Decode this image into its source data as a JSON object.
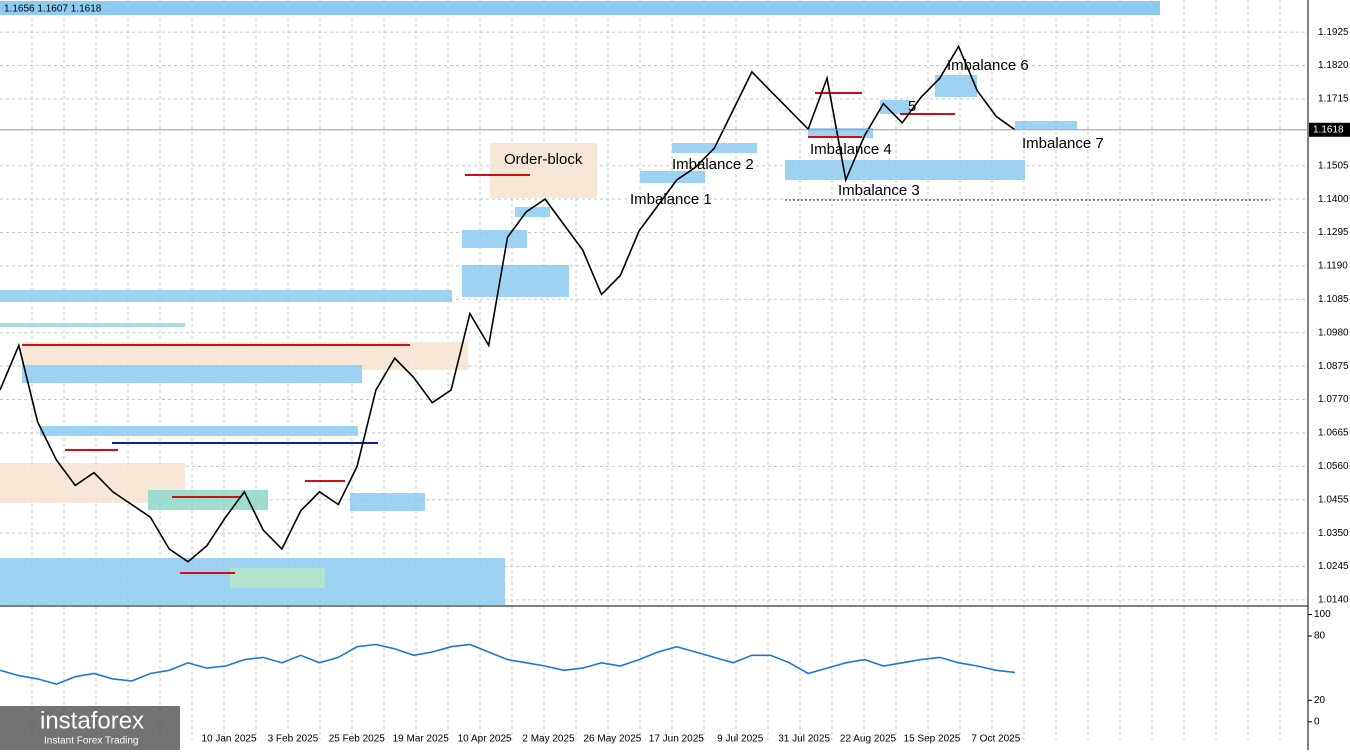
{
  "header": "1.1656 1.1607 1.1618",
  "chart_data": {
    "type": "line",
    "price": {
      "color": "#000000",
      "values": [
        1.08,
        1.094,
        1.07,
        1.058,
        1.05,
        1.054,
        1.048,
        1.044,
        1.04,
        1.03,
        1.026,
        1.031,
        1.04,
        1.048,
        1.036,
        1.03,
        1.042,
        1.048,
        1.044,
        1.056,
        1.08,
        1.09,
        1.084,
        1.076,
        1.08,
        1.104,
        1.094,
        1.128,
        1.136,
        1.14,
        1.132,
        1.124,
        1.11,
        1.116,
        1.13,
        1.138,
        1.146,
        1.15,
        1.156,
        1.168,
        1.18,
        1.174,
        1.168,
        1.162,
        1.178,
        1.146,
        1.16,
        1.17,
        1.164,
        1.172,
        1.178,
        1.188,
        1.174,
        1.166,
        1.1618
      ]
    },
    "current_price": 1.1618,
    "ylim": [
      1.0124,
      1.2026
    ],
    "yticks": [
      1.1925,
      {
        "value": 1.182,
        "label": "1.1820"
      },
      1.1715,
      1.1505,
      {
        "value": 1.14,
        "label": "1.1400"
      },
      1.1295,
      {
        "value": 1.119,
        "label": "1.1190"
      },
      1.1085,
      {
        "value": 1.098,
        "label": "1.0980"
      },
      1.0875,
      {
        "value": 1.077,
        "label": "1.0770"
      },
      1.0665,
      {
        "value": 1.056,
        "label": "1.0560"
      },
      1.0455,
      {
        "value": 1.035,
        "label": "1.0350"
      },
      1.0245,
      {
        "value": 1.014,
        "label": "1.0140"
      }
    ],
    "categories": [
      "10 Jan 2025",
      "3 Feb 2025",
      "25 Feb 2025",
      "19 Mar 2025",
      "10 Apr 2025",
      "2 May 2025",
      "26 May 2025",
      "17 Jun 2025",
      "9 Jul 2025",
      "31 Jul 2025",
      "22 Aug 2025",
      "15 Sep 2025",
      "7 Oct 2025"
    ],
    "indicator": {
      "color": "#1e78d2",
      "values": [
        48,
        43,
        40,
        35,
        42,
        45,
        40,
        38,
        45,
        48,
        55,
        50,
        52,
        58,
        60,
        55,
        62,
        55,
        60,
        70,
        72,
        68,
        62,
        65,
        70,
        72,
        65,
        58,
        55,
        52,
        48,
        50,
        55,
        52,
        58,
        65,
        70,
        65,
        60,
        55,
        62,
        62,
        55,
        45,
        50,
        55,
        58,
        52,
        55,
        58,
        60,
        55,
        52,
        48,
        46
      ],
      "ylim": [
        -17,
        107
      ],
      "yticks": [
        100,
        80,
        20,
        0
      ]
    },
    "annotations": [
      "Order-block",
      "Imbalance 1",
      "Imbalance 2",
      "Imbalance 3",
      "Imbalance 4",
      "5",
      "Imbalance 6",
      "Imbalance 7"
    ]
  },
  "logo": {
    "name": "instaforex",
    "tagline": "Instant Forex Trading"
  }
}
